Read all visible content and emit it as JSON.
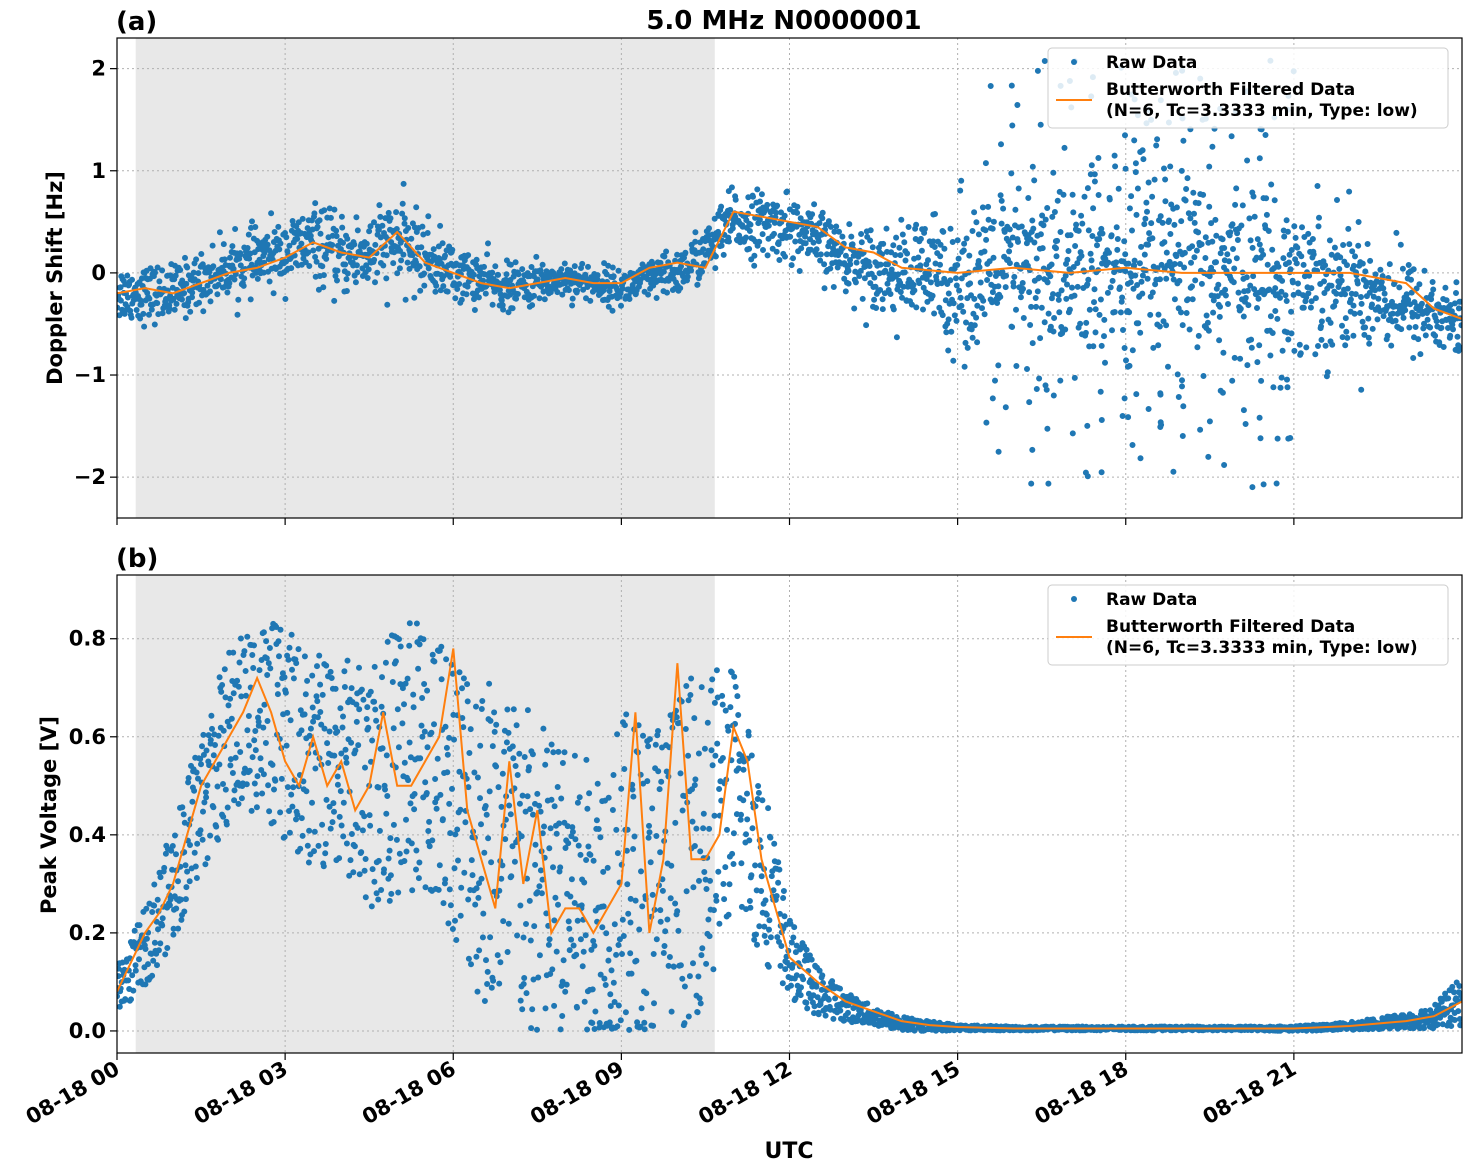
{
  "figure": {
    "title": "5.0 MHz N0000001",
    "xlabel": "UTC",
    "shaded_interval": [
      "08-18 00:20",
      "08-18 10:40"
    ],
    "colors": {
      "raw": "#1f77b4",
      "filtered": "#ff7f0e",
      "shade": "#e8e8e8",
      "grid": "#b0b0b0"
    }
  },
  "chart_data": [
    {
      "type": "scatter",
      "panel_label": "(a)",
      "ylabel": "Doppler Shift [Hz]",
      "ylim": [
        -2.4,
        2.3
      ],
      "yticks": [
        -2,
        -1,
        0,
        1,
        2
      ],
      "ytick_labels": [
        "−2",
        "−1",
        "0",
        "1",
        "2"
      ],
      "xlim_hours": [
        0,
        24
      ],
      "xticks_hours": [
        0,
        3,
        6,
        9,
        12,
        15,
        18,
        21
      ],
      "xtick_labels": [],
      "grid": true,
      "legend": {
        "placement": "top-right",
        "entries": [
          {
            "label": "Raw Data",
            "marker": "dot"
          },
          {
            "label": "Butterworth Filtered Data",
            "label2": "(N=6, Tc=3.3333 min, Type: low)",
            "marker": "line"
          }
        ]
      },
      "series": [
        {
          "name": "Raw Data",
          "x_hours": [
            0,
            1,
            2,
            3,
            3.5,
            4,
            4.5,
            5,
            5.5,
            6,
            7,
            8,
            9,
            10,
            10.5,
            11,
            12,
            13,
            14,
            15,
            16,
            17,
            18,
            19,
            20,
            21,
            22,
            23,
            24
          ],
          "y_center": [
            -0.2,
            -0.2,
            0.05,
            0.2,
            0.3,
            0.15,
            0.2,
            0.3,
            0.15,
            0.0,
            -0.15,
            -0.05,
            -0.15,
            0.0,
            0.2,
            0.5,
            0.45,
            0.15,
            0.0,
            -0.05,
            0.0,
            0.0,
            0.0,
            0.0,
            0.0,
            -0.05,
            -0.1,
            -0.3,
            -0.5
          ],
          "y_spread": [
            0.3,
            0.3,
            0.3,
            0.35,
            0.4,
            0.4,
            0.45,
            0.45,
            0.4,
            0.3,
            0.25,
            0.2,
            0.2,
            0.25,
            0.3,
            0.35,
            0.35,
            0.35,
            0.5,
            0.8,
            1.0,
            1.1,
            1.1,
            1.1,
            1.0,
            0.9,
            0.7,
            0.5,
            0.4
          ],
          "outlier_max": 2.1,
          "outlier_min": -2.2
        },
        {
          "name": "Butterworth Filtered Data (N=6, Tc=3.3333 min, Type: low)",
          "x_hours": [
            0,
            0.5,
            1,
            1.5,
            2,
            2.5,
            3,
            3.5,
            4,
            4.5,
            5,
            5.5,
            6,
            6.5,
            7,
            7.5,
            8,
            8.5,
            9,
            9.5,
            10,
            10.5,
            11,
            11.5,
            12,
            12.5,
            13,
            13.5,
            14,
            15,
            16,
            17,
            18,
            19,
            20,
            21,
            22,
            23,
            23.5,
            24
          ],
          "values": [
            -0.2,
            -0.15,
            -0.2,
            -0.1,
            0.0,
            0.05,
            0.15,
            0.3,
            0.2,
            0.15,
            0.4,
            0.1,
            0.0,
            -0.1,
            -0.15,
            -0.1,
            -0.05,
            -0.1,
            -0.1,
            0.05,
            0.1,
            0.05,
            0.6,
            0.55,
            0.5,
            0.45,
            0.25,
            0.2,
            0.05,
            0.0,
            0.05,
            0.0,
            0.05,
            0.0,
            0.0,
            0.0,
            0.0,
            -0.1,
            -0.35,
            -0.45
          ]
        }
      ]
    },
    {
      "type": "scatter",
      "panel_label": "(b)",
      "ylabel": "Peak Voltage [V]",
      "ylim": [
        -0.045,
        0.93
      ],
      "yticks": [
        0.0,
        0.2,
        0.4,
        0.6,
        0.8
      ],
      "ytick_labels": [
        "0.0",
        "0.2",
        "0.4",
        "0.6",
        "0.8"
      ],
      "xlim_hours": [
        0,
        24
      ],
      "xticks_hours": [
        0,
        3,
        6,
        9,
        12,
        15,
        18,
        21
      ],
      "xtick_labels": [
        "08-18 00",
        "08-18 03",
        "08-18 06",
        "08-18 09",
        "08-18 12",
        "08-18 15",
        "08-18 18",
        "08-18 21"
      ],
      "grid": true,
      "legend": {
        "placement": "top-right",
        "entries": [
          {
            "label": "Raw Data",
            "marker": "dot"
          },
          {
            "label": "Butterworth Filtered Data",
            "label2": "(N=6, Tc=3.3333 min, Type: low)",
            "marker": "line"
          }
        ]
      },
      "series": [
        {
          "name": "Raw Data",
          "x_hours": [
            0,
            0.5,
            1,
            1.5,
            2,
            2.5,
            3,
            3.5,
            4,
            4.5,
            5,
            5.5,
            6,
            6.5,
            7,
            7.5,
            8,
            8.5,
            9,
            9.5,
            10,
            10.5,
            11,
            11.5,
            12,
            12.5,
            13,
            13.5,
            14,
            14.5,
            15,
            16,
            17,
            18,
            19,
            20,
            21,
            22,
            23,
            23.5,
            24
          ],
          "y_center": [
            0.08,
            0.17,
            0.3,
            0.47,
            0.6,
            0.65,
            0.6,
            0.55,
            0.55,
            0.5,
            0.55,
            0.55,
            0.5,
            0.4,
            0.35,
            0.3,
            0.28,
            0.25,
            0.3,
            0.3,
            0.35,
            0.4,
            0.5,
            0.35,
            0.15,
            0.08,
            0.05,
            0.03,
            0.015,
            0.01,
            0.007,
            0.005,
            0.005,
            0.005,
            0.005,
            0.005,
            0.005,
            0.01,
            0.02,
            0.03,
            0.06
          ],
          "y_spread": [
            0.05,
            0.08,
            0.12,
            0.15,
            0.18,
            0.2,
            0.22,
            0.22,
            0.22,
            0.25,
            0.28,
            0.3,
            0.3,
            0.35,
            0.35,
            0.35,
            0.3,
            0.3,
            0.35,
            0.35,
            0.35,
            0.35,
            0.25,
            0.2,
            0.08,
            0.05,
            0.03,
            0.02,
            0.015,
            0.01,
            0.006,
            0.004,
            0.004,
            0.004,
            0.004,
            0.004,
            0.005,
            0.008,
            0.015,
            0.025,
            0.05
          ]
        },
        {
          "name": "Butterworth Filtered Data (N=6, Tc=3.3333 min, Type: low)",
          "x_hours": [
            0,
            0.25,
            0.5,
            0.75,
            1,
            1.25,
            1.5,
            1.75,
            2,
            2.25,
            2.5,
            2.75,
            3,
            3.25,
            3.5,
            3.75,
            4,
            4.25,
            4.5,
            4.75,
            5,
            5.25,
            5.5,
            5.75,
            6,
            6.25,
            6.5,
            6.75,
            7,
            7.25,
            7.5,
            7.75,
            8,
            8.25,
            8.5,
            8.75,
            9,
            9.25,
            9.5,
            9.75,
            10,
            10.25,
            10.5,
            10.75,
            11,
            11.25,
            11.5,
            11.75,
            12,
            12.5,
            13,
            13.5,
            14,
            14.5,
            15,
            16,
            17,
            18,
            19,
            20,
            21,
            22,
            23,
            23.5,
            24
          ],
          "values": [
            0.08,
            0.14,
            0.2,
            0.24,
            0.3,
            0.4,
            0.5,
            0.55,
            0.6,
            0.65,
            0.72,
            0.65,
            0.55,
            0.5,
            0.6,
            0.5,
            0.55,
            0.45,
            0.5,
            0.65,
            0.5,
            0.5,
            0.55,
            0.6,
            0.78,
            0.45,
            0.35,
            0.25,
            0.55,
            0.3,
            0.45,
            0.2,
            0.25,
            0.25,
            0.2,
            0.25,
            0.3,
            0.65,
            0.2,
            0.35,
            0.75,
            0.35,
            0.35,
            0.4,
            0.62,
            0.55,
            0.35,
            0.25,
            0.15,
            0.1,
            0.06,
            0.04,
            0.02,
            0.012,
            0.008,
            0.005,
            0.005,
            0.005,
            0.005,
            0.005,
            0.005,
            0.01,
            0.02,
            0.03,
            0.06
          ]
        }
      ]
    }
  ]
}
